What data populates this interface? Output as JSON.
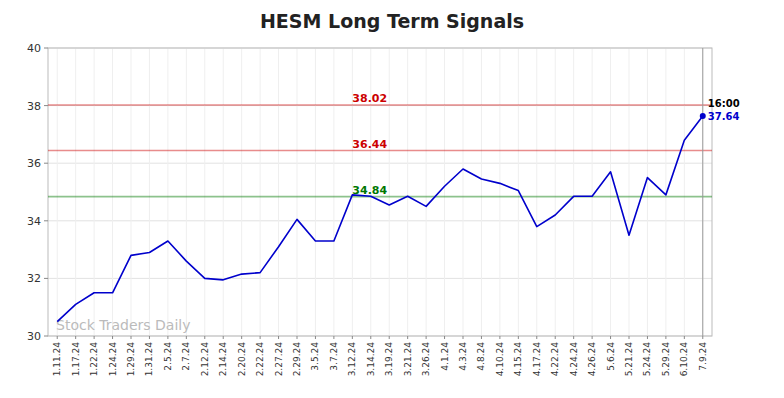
{
  "chart_data": {
    "type": "line",
    "title": "HESM Long Term Signals",
    "categories": [
      "1.11.24",
      "1.17.24",
      "1.22.24",
      "1.24.24",
      "1.29.24",
      "1.31.24",
      "2.5.24",
      "2.7.24",
      "2.12.24",
      "2.14.24",
      "2.20.24",
      "2.22.24",
      "2.27.24",
      "2.29.24",
      "3.5.24",
      "3.7.24",
      "3.12.24",
      "3.14.24",
      "3.19.24",
      "3.21.24",
      "3.26.24",
      "4.1.24",
      "4.3.24",
      "4.8.24",
      "4.10.24",
      "4.15.24",
      "4.17.24",
      "4.22.24",
      "4.24.24",
      "4.26.24",
      "5.6.24",
      "5.21.24",
      "5.24.24",
      "5.29.24",
      "6.10.24",
      "7.9.24"
    ],
    "values": [
      30.5,
      31.1,
      31.5,
      31.5,
      32.8,
      32.9,
      33.3,
      32.6,
      32.0,
      31.95,
      32.15,
      32.2,
      33.1,
      34.05,
      33.3,
      33.3,
      34.9,
      34.85,
      34.55,
      34.85,
      34.5,
      35.2,
      35.8,
      35.45,
      35.3,
      35.05,
      33.8,
      34.2,
      34.85,
      34.85,
      35.7,
      33.5,
      35.5,
      34.9,
      36.8,
      37.64
    ],
    "color": "#0000cc",
    "ylim": [
      30,
      40
    ],
    "yticks": [
      30,
      32,
      34,
      36,
      38,
      40
    ],
    "grid": true,
    "reference_lines": [
      {
        "value": 34.84,
        "color": "#007700"
      },
      {
        "value": 36.44,
        "color": "#cc0000"
      },
      {
        "value": 38.02,
        "color": "#cc0000"
      }
    ],
    "last_time_label": "16:00",
    "last_value": 37.64,
    "watermark": "Stock Traders Daily"
  }
}
